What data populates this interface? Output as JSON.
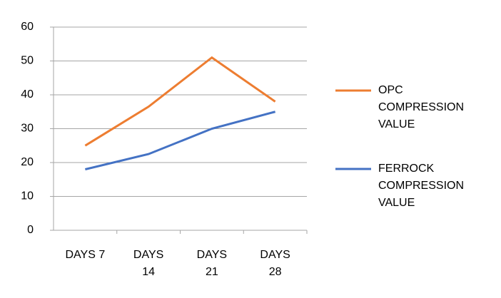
{
  "chart_data": {
    "type": "line",
    "categories": [
      "DAYS 7",
      "DAYS 14",
      "DAYS 21",
      "DAYS 28"
    ],
    "series": [
      {
        "name": "OPC COMPRESSION VALUE",
        "color": "#ed7d31",
        "values": [
          25,
          36.5,
          51,
          38
        ]
      },
      {
        "name": "FERROCK COMPRESSION VALUE",
        "color": "#4472c4",
        "values": [
          18,
          22.5,
          30,
          35
        ]
      }
    ],
    "ylim": [
      0,
      60
    ],
    "yticks": [
      0,
      10,
      20,
      30,
      40,
      50,
      60
    ],
    "grid": true,
    "legend": "right"
  }
}
